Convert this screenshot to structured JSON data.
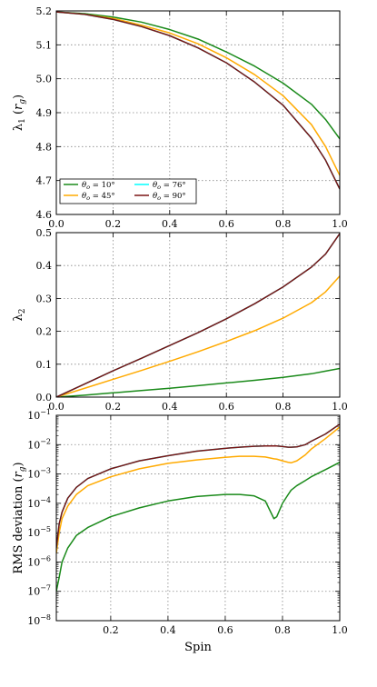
{
  "chart_data": [
    {
      "type": "line",
      "ylabel": "λ1 (rg)",
      "xlabel": "",
      "xlim": [
        0.0,
        1.0
      ],
      "ylim": [
        4.6,
        5.2
      ],
      "grid": true,
      "legend": "lower-left",
      "x_ticks": [
        "0.0",
        "0.2",
        "0.4",
        "0.6",
        "0.8",
        "1.0"
      ],
      "y_ticks": [
        "4.6",
        "4.7",
        "4.8",
        "4.9",
        "5.0",
        "5.1",
        "5.2"
      ],
      "x": [
        0.0,
        0.1,
        0.2,
        0.3,
        0.4,
        0.5,
        0.6,
        0.7,
        0.8,
        0.9,
        0.95,
        1.0
      ],
      "series": [
        {
          "name": "θo = 10°",
          "color": "#1a8a1a",
          "values": [
            5.197,
            5.192,
            5.182,
            5.167,
            5.145,
            5.117,
            5.079,
            5.037,
            4.987,
            4.925,
            4.88,
            4.823
          ]
        },
        {
          "name": "θo = 45°",
          "color": "#ffaa00",
          "values": [
            5.197,
            5.19,
            5.178,
            5.158,
            5.135,
            5.103,
            5.062,
            5.012,
            4.95,
            4.865,
            4.8,
            4.715
          ]
        },
        {
          "name": "θo = 76°",
          "color": "#00ffff",
          "values": [
            5.197,
            5.19,
            5.175,
            5.154,
            5.127,
            5.091,
            5.047,
            4.99,
            4.922,
            4.825,
            4.76,
            4.675
          ]
        },
        {
          "name": "θo = 90°",
          "color": "#7a1414",
          "values": [
            5.197,
            5.19,
            5.175,
            5.154,
            5.127,
            5.091,
            5.047,
            4.99,
            4.922,
            4.825,
            4.76,
            4.675
          ]
        }
      ]
    },
    {
      "type": "line",
      "ylabel": "λ2",
      "xlabel": "",
      "xlim": [
        0.0,
        1.0
      ],
      "ylim": [
        0.0,
        0.5
      ],
      "grid": true,
      "x_ticks": [
        "0.0",
        "0.2",
        "0.4",
        "0.6",
        "0.8",
        "1.0"
      ],
      "y_ticks": [
        "0.0",
        "0.1",
        "0.2",
        "0.3",
        "0.4",
        "0.5"
      ],
      "x": [
        0.0,
        0.1,
        0.2,
        0.3,
        0.4,
        0.5,
        0.6,
        0.7,
        0.8,
        0.9,
        0.95,
        1.0
      ],
      "series": [
        {
          "name": "θo = 10°",
          "color": "#1a8a1a",
          "values": [
            0.0,
            0.006,
            0.013,
            0.02,
            0.027,
            0.035,
            0.043,
            0.051,
            0.06,
            0.071,
            0.079,
            0.087
          ]
        },
        {
          "name": "θo = 45°",
          "color": "#ffaa00",
          "values": [
            0.0,
            0.027,
            0.054,
            0.081,
            0.109,
            0.138,
            0.169,
            0.202,
            0.24,
            0.287,
            0.32,
            0.368
          ]
        },
        {
          "name": "θo = 76°",
          "color": "#00ffff",
          "values": [
            0.0,
            0.04,
            0.08,
            0.118,
            0.157,
            0.196,
            0.238,
            0.284,
            0.335,
            0.395,
            0.435,
            0.497
          ]
        },
        {
          "name": "θo = 90°",
          "color": "#7a1414",
          "values": [
            0.0,
            0.04,
            0.08,
            0.118,
            0.157,
            0.196,
            0.238,
            0.284,
            0.335,
            0.395,
            0.435,
            0.497
          ]
        }
      ]
    },
    {
      "type": "line",
      "ylabel": "RMS deviation (rg)",
      "xlabel": "Spin",
      "xlim": [
        0.01,
        1.0
      ],
      "ylim": [
        1e-08,
        0.1
      ],
      "yscale": "log",
      "grid": true,
      "x_ticks": [
        "0.2",
        "0.4",
        "0.6",
        "0.8",
        "1.0"
      ],
      "y_ticks": [
        "10^-8",
        "10^-7",
        "10^-6",
        "10^-5",
        "10^-4",
        "10^-3",
        "10^-2",
        "10^-1"
      ],
      "x": [
        0.01,
        0.02,
        0.03,
        0.05,
        0.08,
        0.12,
        0.2,
        0.3,
        0.4,
        0.5,
        0.6,
        0.65,
        0.7,
        0.74,
        0.77,
        0.78,
        0.8,
        0.82,
        0.83,
        0.85,
        0.88,
        0.9,
        0.95,
        1.0
      ],
      "series": [
        {
          "name": "θo = 10°",
          "color": "#1a8a1a",
          "values": [
            1e-07,
            3e-07,
            1e-06,
            3e-06,
            8e-06,
            1.5e-05,
            3.5e-05,
            7e-05,
            0.00012,
            0.00017,
            0.0002,
            0.0002,
            0.00018,
            0.00012,
            3e-05,
            3.5e-05,
            0.0001,
            0.0002,
            0.00028,
            0.0004,
            0.0006,
            0.0008,
            0.0014,
            0.0025
          ]
        },
        {
          "name": "θo = 45°",
          "color": "#ffaa00",
          "values": [
            2e-06,
            1e-05,
            3e-05,
            8e-05,
            0.0002,
            0.0004,
            0.0008,
            0.0015,
            0.0023,
            0.003,
            0.0037,
            0.004,
            0.004,
            0.0038,
            0.0033,
            0.0032,
            0.0028,
            0.0025,
            0.0024,
            0.0028,
            0.0045,
            0.007,
            0.016,
            0.04
          ]
        },
        {
          "name": "θo = 76°",
          "color": "#00ffff",
          "values": [
            3e-06,
            2e-05,
            5e-05,
            0.00015,
            0.00035,
            0.0007,
            0.0015,
            0.0028,
            0.0042,
            0.006,
            0.0075,
            0.0082,
            0.0088,
            0.009,
            0.009,
            0.009,
            0.0086,
            0.0082,
            0.0082,
            0.0084,
            0.01,
            0.013,
            0.023,
            0.05
          ]
        },
        {
          "name": "θo = 90°",
          "color": "#7a1414",
          "values": [
            3e-06,
            2e-05,
            5e-05,
            0.00015,
            0.00035,
            0.0007,
            0.0015,
            0.0028,
            0.0042,
            0.006,
            0.0075,
            0.0082,
            0.0088,
            0.009,
            0.009,
            0.009,
            0.0086,
            0.0082,
            0.0082,
            0.0084,
            0.01,
            0.013,
            0.023,
            0.05
          ]
        }
      ]
    }
  ]
}
